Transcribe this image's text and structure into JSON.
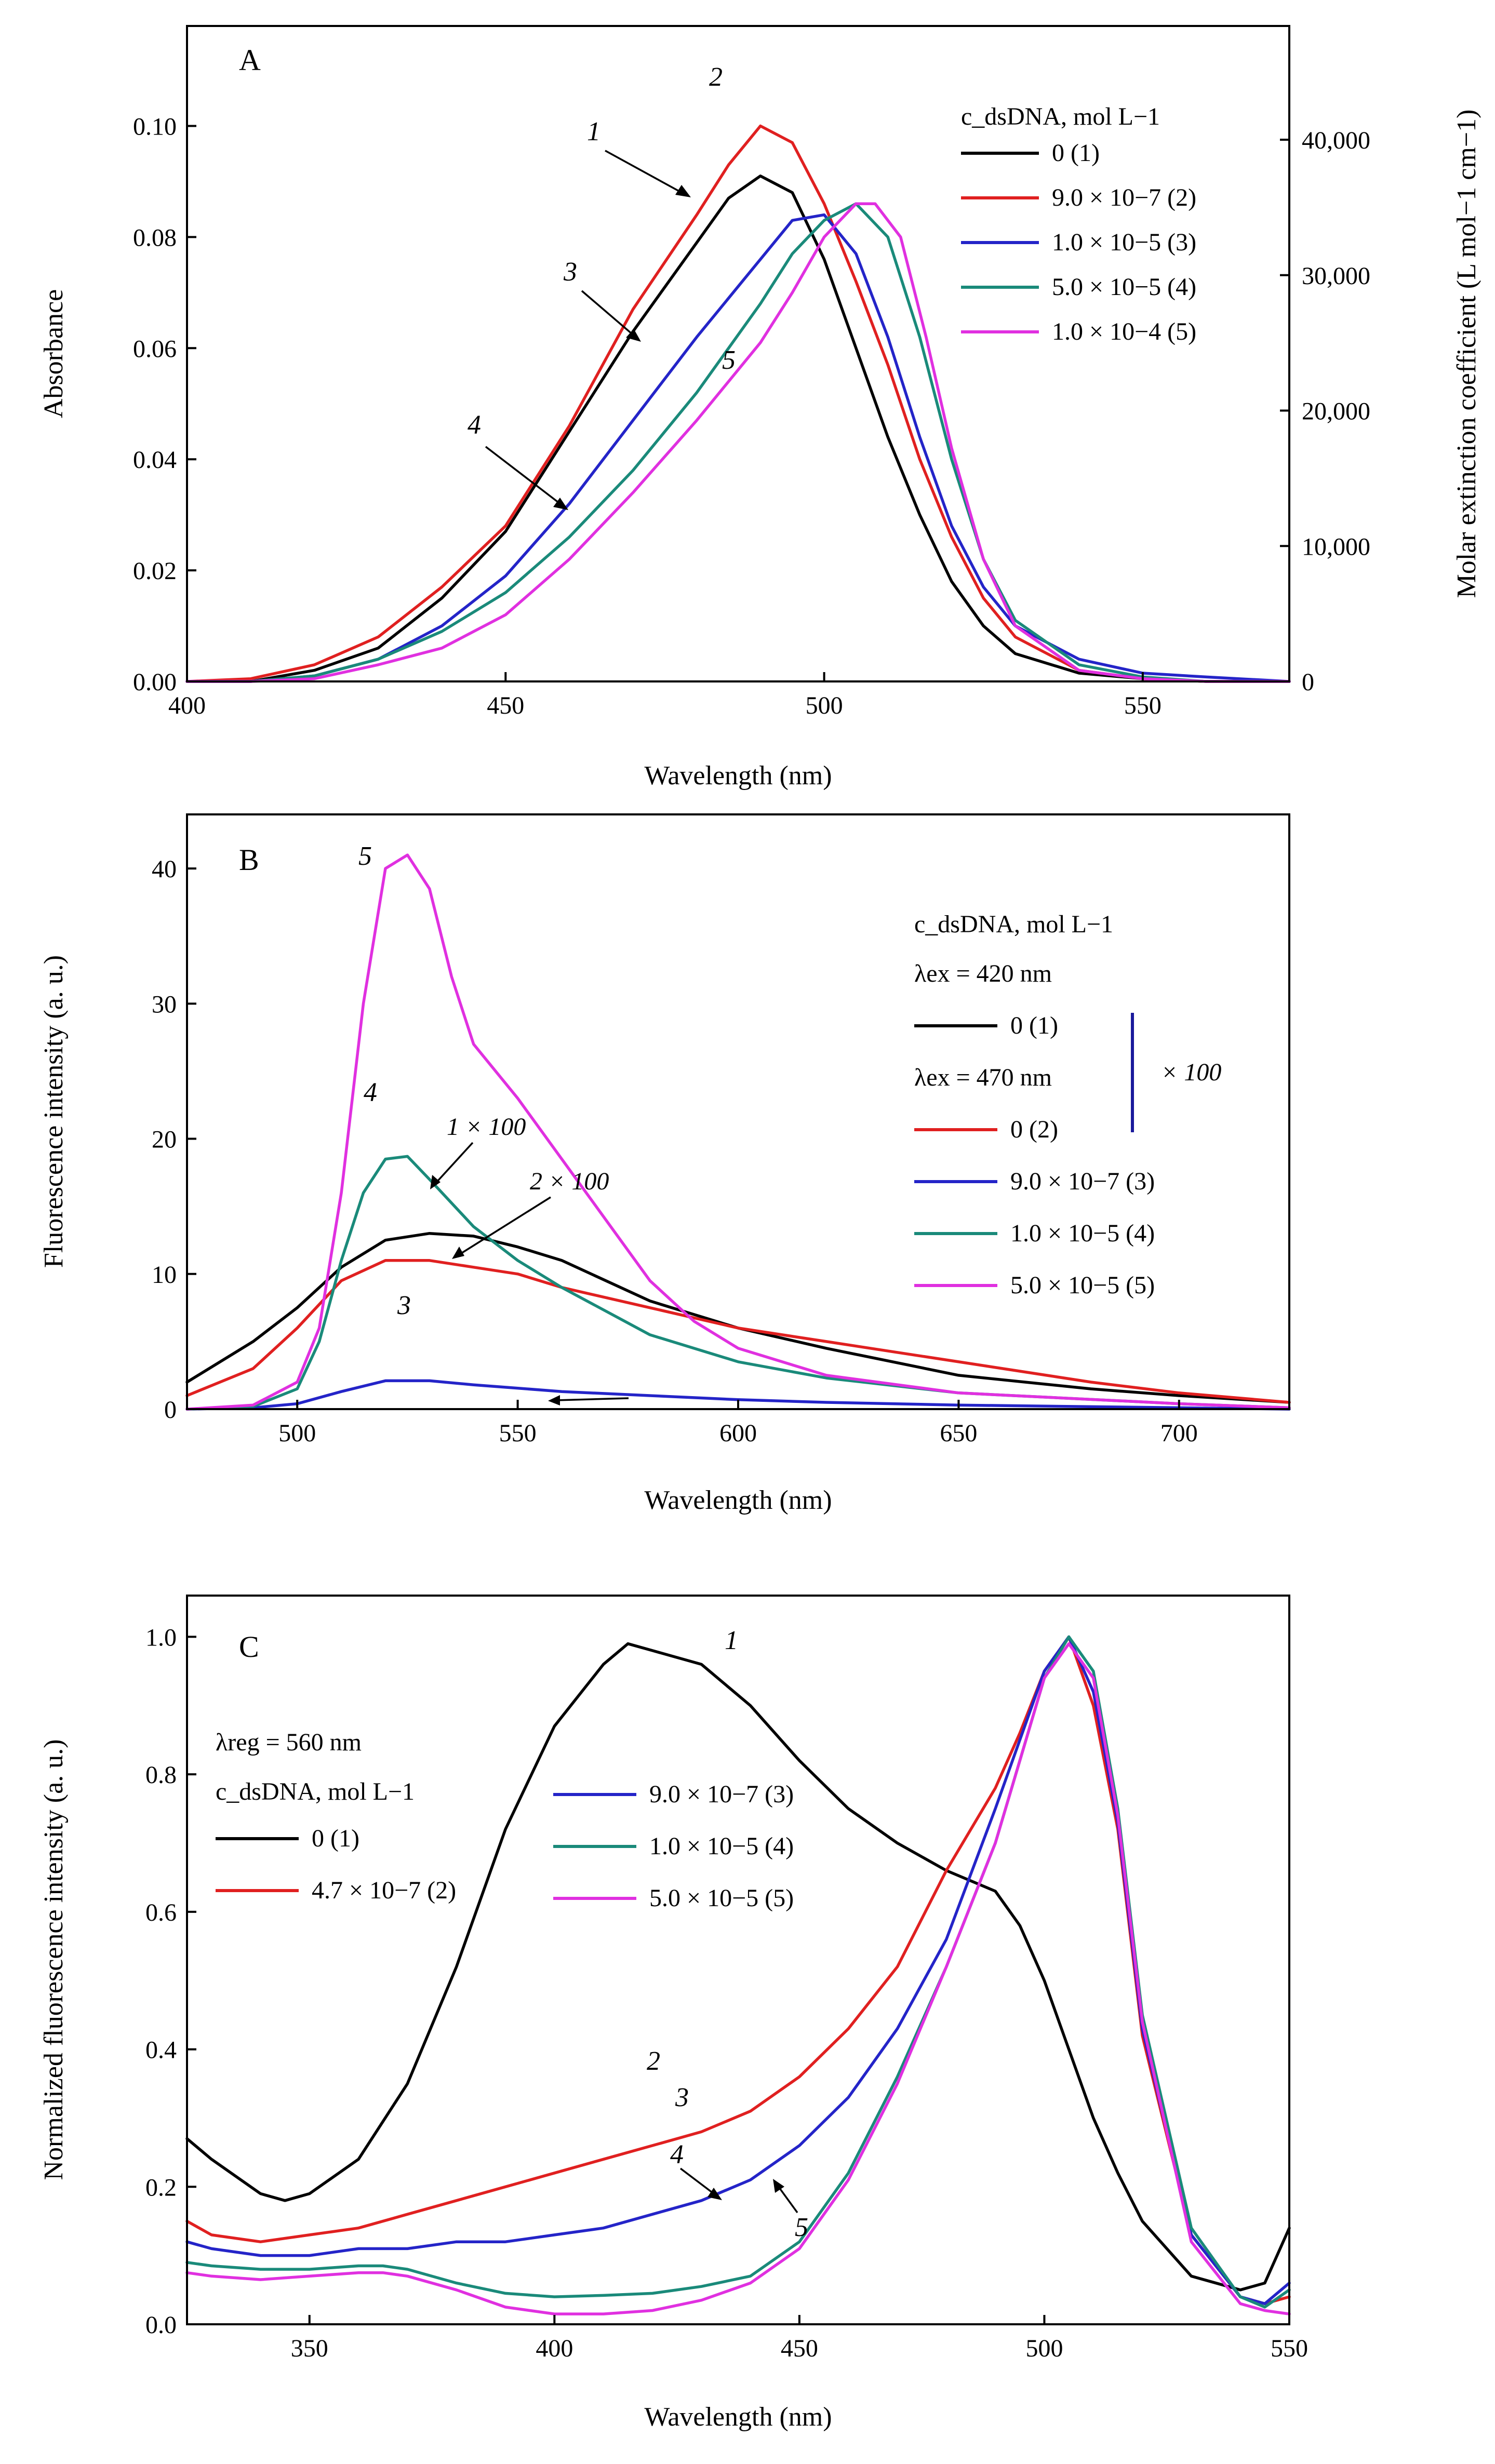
{
  "chart_data": [
    {
      "panel": "A",
      "type": "line",
      "xlabel": "Wavelength (nm)",
      "ylabel": "Absorbance",
      "y2label": "Molar extinction coefficient (L mol−1 cm−1)",
      "xlim": [
        400,
        573
      ],
      "ylim": [
        0,
        0.118
      ],
      "y2lim": [
        0,
        48400
      ],
      "xticks": [
        "400",
        "450",
        "500",
        "550"
      ],
      "yticks": [
        "0.00",
        "0.02",
        "0.04",
        "0.06",
        "0.08",
        "0.10"
      ],
      "y2ticks": [
        "0",
        "10,000",
        "20,000",
        "30,000",
        "40,000"
      ],
      "legend_title": "c_dsDNA, mol L−1",
      "series": [
        {
          "name": "0 (1)",
          "label": "1",
          "color": "#000000",
          "x": [
            400,
            410,
            420,
            430,
            440,
            450,
            460,
            470,
            480,
            485,
            490,
            495,
            500,
            505,
            510,
            515,
            520,
            525,
            530,
            540,
            550,
            560,
            573
          ],
          "y": [
            0,
            0,
            0.002,
            0.006,
            0.015,
            0.027,
            0.045,
            0.063,
            0.079,
            0.087,
            0.091,
            0.088,
            0.076,
            0.06,
            0.044,
            0.03,
            0.018,
            0.01,
            0.005,
            0.0015,
            0.0005,
            0,
            0
          ]
        },
        {
          "name": "9.0 × 10−7 (2)",
          "label": "2",
          "color": "#e02020",
          "x": [
            400,
            410,
            420,
            430,
            440,
            450,
            460,
            470,
            480,
            485,
            490,
            495,
            500,
            505,
            510,
            515,
            520,
            525,
            530,
            540,
            550,
            560,
            573
          ],
          "y": [
            0,
            0.0005,
            0.003,
            0.008,
            0.017,
            0.028,
            0.046,
            0.067,
            0.084,
            0.093,
            0.1,
            0.097,
            0.086,
            0.072,
            0.057,
            0.04,
            0.026,
            0.015,
            0.008,
            0.002,
            0.0005,
            0,
            0
          ]
        },
        {
          "name": "1.0 × 10−5 (3)",
          "label": "3",
          "color": "#2424c8",
          "x": [
            400,
            410,
            420,
            430,
            440,
            450,
            460,
            470,
            480,
            490,
            495,
            500,
            505,
            510,
            515,
            520,
            525,
            530,
            540,
            550,
            560,
            573
          ],
          "y": [
            0,
            0,
            0.001,
            0.004,
            0.01,
            0.019,
            0.032,
            0.047,
            0.062,
            0.076,
            0.083,
            0.084,
            0.077,
            0.062,
            0.044,
            0.028,
            0.017,
            0.01,
            0.004,
            0.0015,
            0.0008,
            0
          ]
        },
        {
          "name": "5.0 × 10−5 (4)",
          "label": "4",
          "color": "#1a8a7a",
          "x": [
            400,
            410,
            420,
            430,
            440,
            450,
            460,
            470,
            480,
            490,
            495,
            500,
            505,
            510,
            515,
            520,
            525,
            530,
            540,
            550,
            560,
            573
          ],
          "y": [
            0,
            0,
            0.001,
            0.004,
            0.009,
            0.016,
            0.026,
            0.038,
            0.052,
            0.068,
            0.077,
            0.083,
            0.086,
            0.08,
            0.062,
            0.04,
            0.022,
            0.011,
            0.003,
            0.0008,
            0,
            0
          ]
        },
        {
          "name": "1.0 × 10−4 (5)",
          "label": "5",
          "color": "#e030e0",
          "x": [
            400,
            410,
            420,
            430,
            440,
            450,
            460,
            470,
            480,
            490,
            495,
            500,
            505,
            508,
            512,
            516,
            520,
            525,
            530,
            540,
            550,
            560,
            573
          ],
          "y": [
            0,
            0,
            0.0005,
            0.003,
            0.006,
            0.012,
            0.022,
            0.034,
            0.047,
            0.061,
            0.07,
            0.08,
            0.086,
            0.086,
            0.08,
            0.062,
            0.042,
            0.022,
            0.01,
            0.002,
            0.0005,
            0,
            0
          ]
        }
      ]
    },
    {
      "panel": "B",
      "type": "line",
      "xlabel": "Wavelength (nm)",
      "ylabel": "Fluorescence intensity (a. u.)",
      "xlim": [
        475,
        725
      ],
      "ylim": [
        0,
        44
      ],
      "xticks": [
        "500",
        "550",
        "600",
        "650",
        "700"
      ],
      "yticks": [
        "0",
        "10",
        "20",
        "30",
        "40"
      ],
      "legend_title": "c_dsDNA, mol L−1",
      "legend_ex1": "λex = 420 nm",
      "legend_ex2": "λex = 470 nm",
      "scale_note": "× 100",
      "annotations": [
        "1 × 100",
        "2 × 100"
      ],
      "series": [
        {
          "name": "0 (1)",
          "label": "1",
          "color": "#000000",
          "x": [
            475,
            490,
            500,
            510,
            520,
            530,
            540,
            550,
            560,
            580,
            600,
            620,
            650,
            680,
            700,
            725
          ],
          "y": [
            2,
            5,
            7.5,
            10.5,
            12.5,
            13,
            12.8,
            12,
            11,
            8,
            6,
            4.5,
            2.5,
            1.5,
            1,
            0.5
          ]
        },
        {
          "name": "0 (2)",
          "label": "2",
          "color": "#e02020",
          "x": [
            475,
            490,
            500,
            510,
            520,
            530,
            540,
            550,
            560,
            580,
            600,
            620,
            650,
            680,
            700,
            725
          ],
          "y": [
            1,
            3,
            6,
            9.5,
            11,
            11,
            10.5,
            10,
            9,
            7.5,
            6,
            5,
            3.5,
            2,
            1.2,
            0.5
          ]
        },
        {
          "name": "9.0 × 10−7 (3)",
          "label": "3",
          "color": "#2424c8",
          "x": [
            475,
            490,
            500,
            510,
            520,
            530,
            540,
            560,
            580,
            600,
            620,
            650,
            700,
            725
          ],
          "y": [
            0,
            0.1,
            0.4,
            1.3,
            2.1,
            2.1,
            1.8,
            1.3,
            1,
            0.7,
            0.5,
            0.3,
            0.1,
            0
          ]
        },
        {
          "name": "1.0 × 10−5 (4)",
          "label": "4",
          "color": "#1a8a7a",
          "x": [
            475,
            490,
            500,
            505,
            510,
            515,
            520,
            525,
            530,
            540,
            550,
            560,
            580,
            600,
            620,
            650,
            700,
            725
          ],
          "y": [
            0,
            0.2,
            1.5,
            5,
            11,
            16,
            18.5,
            18.7,
            17,
            13.5,
            11,
            9,
            5.5,
            3.5,
            2.3,
            1.2,
            0.4,
            0.1
          ]
        },
        {
          "name": "5.0 × 10−5 (5)",
          "label": "5",
          "color": "#e030e0",
          "x": [
            475,
            490,
            500,
            505,
            510,
            515,
            520,
            525,
            530,
            535,
            540,
            550,
            560,
            570,
            580,
            590,
            600,
            620,
            650,
            700,
            725
          ],
          "y": [
            0,
            0.3,
            2,
            6,
            16,
            30,
            40,
            41,
            38.5,
            32,
            27,
            23,
            18.5,
            14,
            9.5,
            6.5,
            4.5,
            2.5,
            1.2,
            0.4,
            0.1
          ]
        }
      ]
    },
    {
      "panel": "C",
      "type": "line",
      "xlabel": "Wavelength (nm)",
      "ylabel": "Normalized fluorescence intensity (a. u.)",
      "xlim": [
        325,
        550
      ],
      "ylim": [
        0,
        1.06
      ],
      "xticks": [
        "350",
        "400",
        "450",
        "500",
        "550"
      ],
      "yticks": [
        "0.0",
        "0.2",
        "0.4",
        "0.6",
        "0.8",
        "1.0"
      ],
      "legend_reg": "λreg = 560 nm",
      "legend_title": "c_dsDNA, mol L−1",
      "series": [
        {
          "name": "0 (1)",
          "label": "1",
          "color": "#000000",
          "x": [
            325,
            330,
            340,
            345,
            350,
            360,
            370,
            380,
            390,
            400,
            410,
            415,
            420,
            425,
            430,
            440,
            450,
            460,
            470,
            480,
            490,
            495,
            500,
            505,
            510,
            515,
            520,
            530,
            540,
            545,
            550
          ],
          "y": [
            0.27,
            0.24,
            0.19,
            0.18,
            0.19,
            0.24,
            0.35,
            0.52,
            0.72,
            0.87,
            0.96,
            0.99,
            0.98,
            0.97,
            0.96,
            0.9,
            0.82,
            0.75,
            0.7,
            0.66,
            0.63,
            0.58,
            0.5,
            0.4,
            0.3,
            0.22,
            0.15,
            0.07,
            0.05,
            0.06,
            0.14
          ]
        },
        {
          "name": "4.7 × 10−7 (2)",
          "label": "2",
          "color": "#e02020",
          "x": [
            325,
            330,
            340,
            350,
            360,
            370,
            380,
            390,
            400,
            410,
            420,
            430,
            440,
            450,
            460,
            470,
            480,
            490,
            495,
            500,
            505,
            510,
            515,
            520,
            530,
            540,
            545,
            550
          ],
          "y": [
            0.15,
            0.13,
            0.12,
            0.13,
            0.14,
            0.16,
            0.18,
            0.2,
            0.22,
            0.24,
            0.26,
            0.28,
            0.31,
            0.36,
            0.43,
            0.52,
            0.66,
            0.78,
            0.86,
            0.95,
            1.0,
            0.9,
            0.72,
            0.42,
            0.13,
            0.04,
            0.03,
            0.04
          ]
        },
        {
          "name": "9.0 × 10−7 (3)",
          "label": "3",
          "color": "#2424c8",
          "x": [
            325,
            330,
            340,
            350,
            360,
            370,
            380,
            390,
            400,
            410,
            420,
            430,
            440,
            450,
            460,
            470,
            480,
            490,
            495,
            500,
            505,
            510,
            515,
            520,
            530,
            540,
            545,
            550
          ],
          "y": [
            0.12,
            0.11,
            0.1,
            0.1,
            0.11,
            0.11,
            0.12,
            0.12,
            0.13,
            0.14,
            0.16,
            0.18,
            0.21,
            0.26,
            0.33,
            0.43,
            0.56,
            0.75,
            0.85,
            0.95,
            1.0,
            0.92,
            0.73,
            0.43,
            0.13,
            0.04,
            0.03,
            0.06
          ]
        },
        {
          "name": "1.0 × 10−5 (4)",
          "label": "4",
          "color": "#1a8a7a",
          "x": [
            325,
            330,
            340,
            350,
            360,
            365,
            370,
            380,
            390,
            400,
            410,
            420,
            430,
            440,
            450,
            460,
            470,
            480,
            490,
            495,
            500,
            505,
            510,
            515,
            520,
            530,
            540,
            545,
            550
          ],
          "y": [
            0.09,
            0.085,
            0.08,
            0.08,
            0.085,
            0.085,
            0.08,
            0.06,
            0.045,
            0.04,
            0.042,
            0.045,
            0.055,
            0.07,
            0.12,
            0.22,
            0.36,
            0.52,
            0.7,
            0.82,
            0.94,
            1.0,
            0.95,
            0.75,
            0.45,
            0.14,
            0.04,
            0.025,
            0.05
          ]
        },
        {
          "name": "5.0 × 10−5 (5)",
          "label": "5",
          "color": "#e030e0",
          "x": [
            325,
            330,
            340,
            350,
            360,
            365,
            370,
            380,
            390,
            400,
            410,
            420,
            430,
            440,
            450,
            460,
            470,
            480,
            490,
            495,
            500,
            505,
            510,
            515,
            520,
            530,
            540,
            545,
            550
          ],
          "y": [
            0.075,
            0.07,
            0.065,
            0.07,
            0.075,
            0.075,
            0.07,
            0.05,
            0.025,
            0.015,
            0.015,
            0.02,
            0.035,
            0.06,
            0.11,
            0.21,
            0.35,
            0.52,
            0.7,
            0.82,
            0.94,
            0.99,
            0.94,
            0.74,
            0.44,
            0.12,
            0.03,
            0.02,
            0.015
          ]
        }
      ]
    }
  ]
}
